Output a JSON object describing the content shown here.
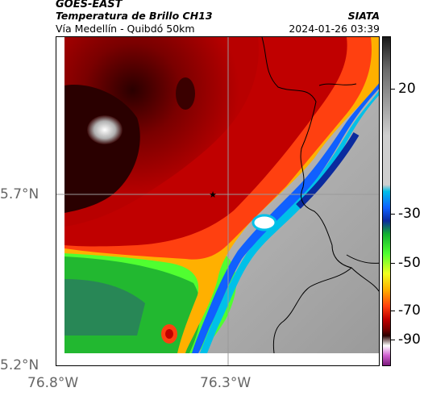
{
  "header": {
    "agency": "GOES-EAST",
    "product": "Temperatura de Brillo CH13",
    "region": "Vía Medellín - Quibdó 50km",
    "brand": "SIATA",
    "datetime": "2024-01-26 03:39"
  },
  "axes": {
    "lat_ticks": [
      "5.7°N",
      "5.2°N"
    ],
    "lon_ticks": [
      "76.8°W",
      "76.3°W"
    ]
  },
  "colorbar": {
    "ticks": [
      "20",
      "-30",
      "-50",
      "-70",
      "-90"
    ],
    "palette": [
      "#1a1a1a",
      "#6b6b6b",
      "#cfcfcf",
      "#00c0e8",
      "#1060ff",
      "#0b2b9e",
      "#12b030",
      "#50ff30",
      "#f0ff20",
      "#ffb000",
      "#ff4010",
      "#c00000",
      "#7a0000",
      "#2a0000",
      "#ffffff",
      "#d060d0",
      "#7a1a7a"
    ]
  },
  "map": {
    "marker": "★"
  }
}
